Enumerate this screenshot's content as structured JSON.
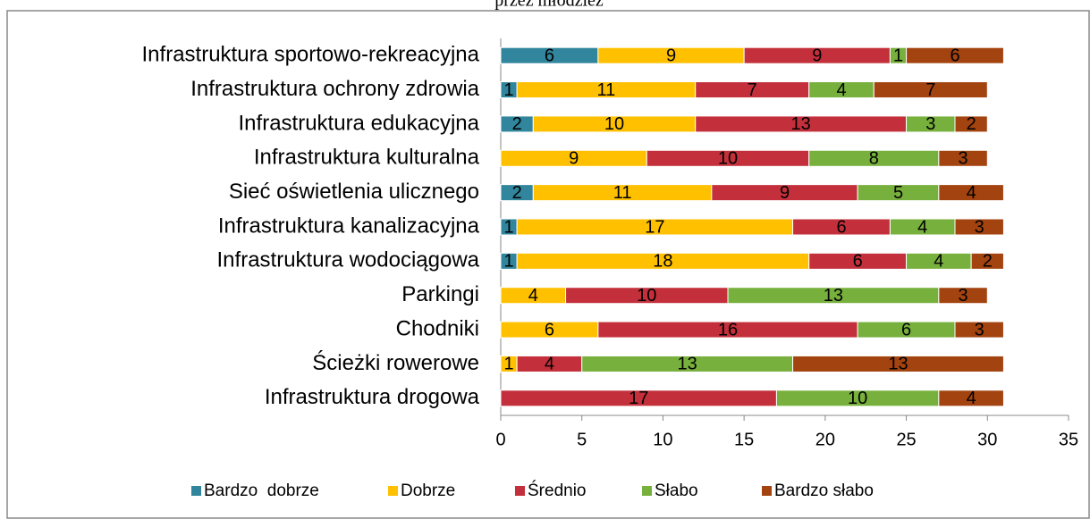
{
  "chart_data": {
    "type": "stacked_barh",
    "title": "przez młodzież",
    "categories": [
      "Infrastruktura sportowo-rekreacyjna",
      "Infrastruktura ochrony zdrowia",
      "Infrastruktura edukacyjna",
      "Infrastruktura kulturalna",
      "Sieć oświetlenia ulicznego",
      "Infrastruktura kanalizacyjna",
      "Infrastruktura wodociągowa",
      "Parkingi",
      "Chodniki",
      "Ścieżki rowerowe",
      "Infrastruktura drogowa"
    ],
    "series": [
      {
        "name": "Bardzo  dobrze",
        "color": "#31859c",
        "values": [
          6,
          1,
          2,
          null,
          2,
          1,
          1,
          null,
          null,
          null,
          null
        ]
      },
      {
        "name": "Dobrze",
        "color": "#ffc000",
        "values": [
          9,
          11,
          10,
          9,
          11,
          17,
          18,
          4,
          6,
          1,
          null
        ]
      },
      {
        "name": "Średnio",
        "color": "#c3303b",
        "values": [
          9,
          7,
          13,
          10,
          9,
          6,
          6,
          10,
          16,
          4,
          17
        ]
      },
      {
        "name": "Słabo",
        "color": "#77b03c",
        "values": [
          1,
          4,
          3,
          8,
          5,
          4,
          4,
          13,
          6,
          13,
          10
        ]
      },
      {
        "name": "Bardzo słabo",
        "color": "#a3430f",
        "values": [
          6,
          7,
          2,
          3,
          4,
          3,
          2,
          3,
          3,
          13,
          4
        ]
      }
    ],
    "xlim": [
      0,
      35
    ],
    "xticks": [
      0,
      5,
      10,
      15,
      20,
      25,
      30,
      35
    ],
    "legend": "bottom"
  }
}
